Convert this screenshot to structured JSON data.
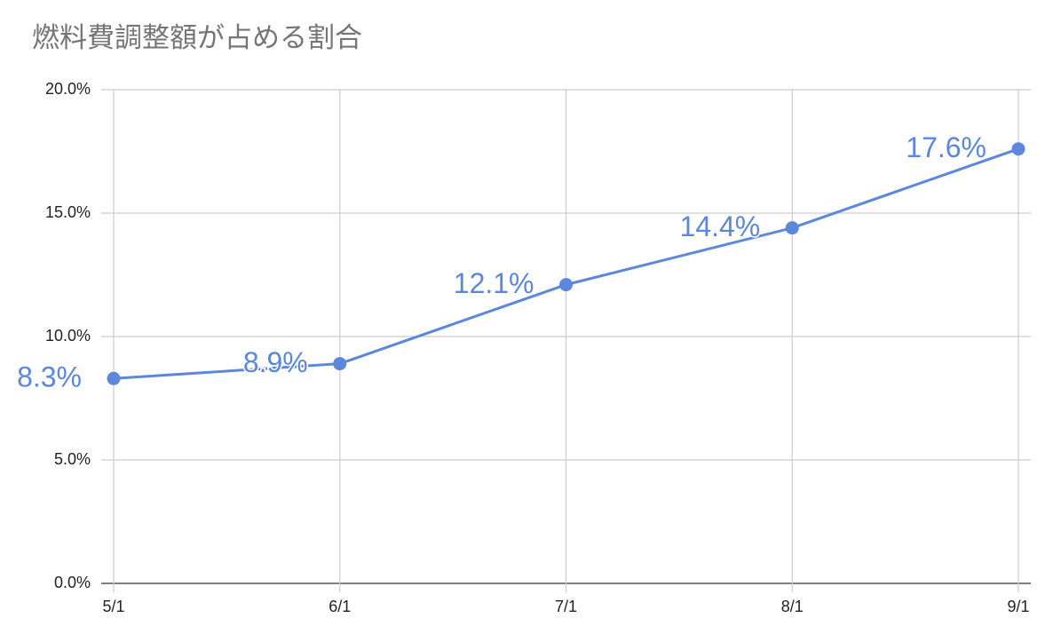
{
  "chart_data": {
    "type": "line",
    "title": "燃料費調整額が占める割合",
    "categories": [
      "5/1",
      "6/1",
      "7/1",
      "8/1",
      "9/1"
    ],
    "values": [
      8.3,
      8.9,
      12.1,
      14.4,
      17.6
    ],
    "value_labels": [
      "8.3%",
      "8.9%",
      "12.1%",
      "14.4%",
      "17.6%"
    ],
    "color": "#5b87dc",
    "ylim": [
      0,
      20
    ],
    "yticks": [
      {
        "value": 0,
        "label": "0.0%"
      },
      {
        "value": 5,
        "label": "5.0%"
      },
      {
        "value": 10,
        "label": "10.0%"
      },
      {
        "value": 15,
        "label": "15.0%"
      },
      {
        "value": 20,
        "label": "20.0%"
      }
    ],
    "grid": true
  }
}
